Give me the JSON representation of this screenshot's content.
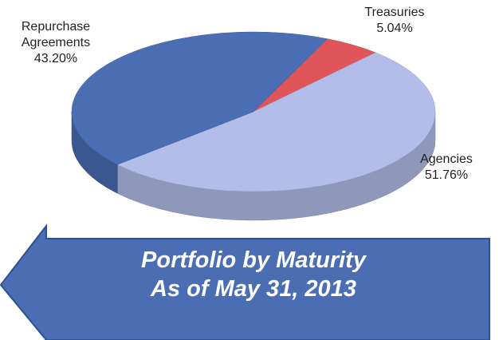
{
  "chart_data": {
    "type": "pie",
    "title": "Portfolio by Maturity As of May 31, 2013",
    "categories": [
      "Treasuries",
      "Agencies",
      "Repurchase Agreements"
    ],
    "values": [
      5.04,
      51.76,
      43.2
    ],
    "value_labels": [
      "5.04%",
      "51.76%",
      "43.20%"
    ],
    "colors": [
      "#e0555a",
      "#b3bdea",
      "#4a6db3"
    ]
  }
}
